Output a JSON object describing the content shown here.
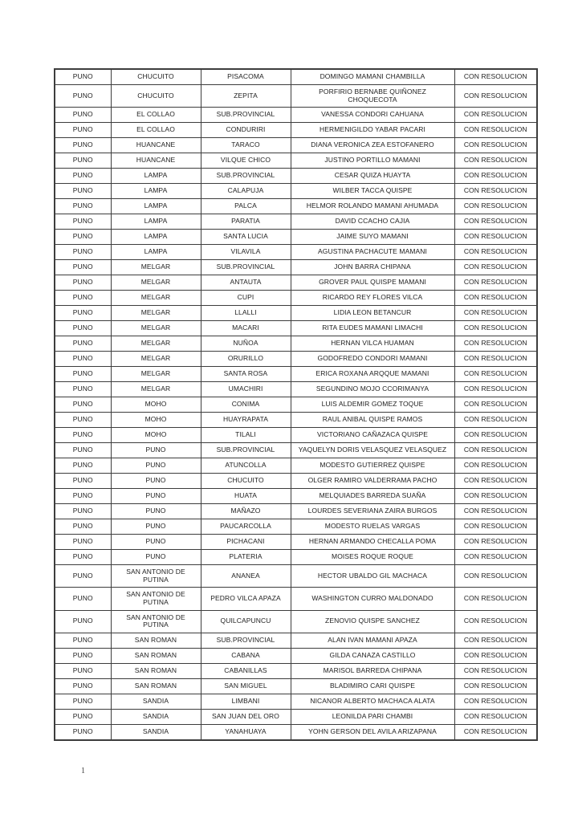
{
  "document": {
    "page_number": "1",
    "status_label": "CON RESOLUCION",
    "text_color": "#222222",
    "border_color": "#3d3d3d"
  },
  "table": {
    "rows": [
      [
        "PUNO",
        "CHUCUITO",
        "PISACOMA",
        "DOMINGO MAMANI CHAMBILLA",
        "CON RESOLUCION"
      ],
      [
        "PUNO",
        "CHUCUITO",
        "ZEPITA",
        "PORFIRIO BERNABE QUIÑONEZ CHOQUECOTA",
        "CON RESOLUCION"
      ],
      [
        "PUNO",
        "EL COLLAO",
        "SUB.PROVINCIAL",
        "VANESSA CONDORI CAHUANA",
        "CON RESOLUCION"
      ],
      [
        "PUNO",
        "EL COLLAO",
        "CONDURIRI",
        "HERMENIGILDO YABAR PACARI",
        "CON RESOLUCION"
      ],
      [
        "PUNO",
        "HUANCANE",
        "TARACO",
        "DIANA VERONICA ZEA ESTOFANERO",
        "CON RESOLUCION"
      ],
      [
        "PUNO",
        "HUANCANE",
        "VILQUE CHICO",
        "JUSTINO PORTILLO MAMANI",
        "CON RESOLUCION"
      ],
      [
        "PUNO",
        "LAMPA",
        "SUB.PROVINCIAL",
        "CESAR QUIZA HUAYTA",
        "CON RESOLUCION"
      ],
      [
        "PUNO",
        "LAMPA",
        "CALAPUJA",
        "WILBER TACCA QUISPE",
        "CON RESOLUCION"
      ],
      [
        "PUNO",
        "LAMPA",
        "PALCA",
        "HELMOR ROLANDO MAMANI AHUMADA",
        "CON RESOLUCION"
      ],
      [
        "PUNO",
        "LAMPA",
        "PARATIA",
        "DAVID CCACHO CAJIA",
        "CON RESOLUCION"
      ],
      [
        "PUNO",
        "LAMPA",
        "SANTA LUCIA",
        "JAIME SUYO MAMANI",
        "CON RESOLUCION"
      ],
      [
        "PUNO",
        "LAMPA",
        "VILAVILA",
        "AGUSTINA PACHACUTE MAMANI",
        "CON RESOLUCION"
      ],
      [
        "PUNO",
        "MELGAR",
        "SUB.PROVINCIAL",
        "JOHN BARRA CHIPANA",
        "CON RESOLUCION"
      ],
      [
        "PUNO",
        "MELGAR",
        "ANTAUTA",
        "GROVER PAUL QUISPE MAMANI",
        "CON RESOLUCION"
      ],
      [
        "PUNO",
        "MELGAR",
        "CUPI",
        "RICARDO REY FLORES VILCA",
        "CON RESOLUCION"
      ],
      [
        "PUNO",
        "MELGAR",
        "LLALLI",
        "LIDIA LEON BETANCUR",
        "CON RESOLUCION"
      ],
      [
        "PUNO",
        "MELGAR",
        "MACARI",
        "RITA EUDES MAMANI LIMACHI",
        "CON RESOLUCION"
      ],
      [
        "PUNO",
        "MELGAR",
        "NUÑOA",
        "HERNAN VILCA HUAMAN",
        "CON RESOLUCION"
      ],
      [
        "PUNO",
        "MELGAR",
        "ORURILLO",
        "GODOFREDO CONDORI MAMANI",
        "CON RESOLUCION"
      ],
      [
        "PUNO",
        "MELGAR",
        "SANTA ROSA",
        "ERICA ROXANA ARQQUE MAMANI",
        "CON RESOLUCION"
      ],
      [
        "PUNO",
        "MELGAR",
        "UMACHIRI",
        "SEGUNDINO MOJO CCORIMANYA",
        "CON RESOLUCION"
      ],
      [
        "PUNO",
        "MOHO",
        "CONIMA",
        "LUIS ALDEMIR GOMEZ TOQUE",
        "CON RESOLUCION"
      ],
      [
        "PUNO",
        "MOHO",
        "HUAYRAPATA",
        "RAUL ANIBAL QUISPE RAMOS",
        "CON RESOLUCION"
      ],
      [
        "PUNO",
        "MOHO",
        "TILALI",
        "VICTORIANO CAÑAZACA QUISPE",
        "CON RESOLUCION"
      ],
      [
        "PUNO",
        "PUNO",
        "SUB.PROVINCIAL",
        "YAQUELYN DORIS VELASQUEZ VELASQUEZ",
        "CON RESOLUCION"
      ],
      [
        "PUNO",
        "PUNO",
        "ATUNCOLLA",
        "MODESTO GUTIERREZ QUISPE",
        "CON RESOLUCION"
      ],
      [
        "PUNO",
        "PUNO",
        "CHUCUITO",
        "OLGER RAMIRO VALDERRAMA PACHO",
        "CON RESOLUCION"
      ],
      [
        "PUNO",
        "PUNO",
        "HUATA",
        "MELQUIADES BARREDA SUAÑA",
        "CON RESOLUCION"
      ],
      [
        "PUNO",
        "PUNO",
        "MAÑAZO",
        "LOURDES SEVERIANA ZAIRA BURGOS",
        "CON RESOLUCION"
      ],
      [
        "PUNO",
        "PUNO",
        "PAUCARCOLLA",
        "MODESTO RUELAS VARGAS",
        "CON RESOLUCION"
      ],
      [
        "PUNO",
        "PUNO",
        "PICHACANI",
        "HERNAN ARMANDO CHECALLA POMA",
        "CON RESOLUCION"
      ],
      [
        "PUNO",
        "PUNO",
        "PLATERIA",
        "MOISES ROQUE ROQUE",
        "CON RESOLUCION"
      ],
      [
        "PUNO",
        "SAN ANTONIO DE PUTINA",
        "ANANEA",
        "HECTOR UBALDO GIL MACHACA",
        "CON RESOLUCION"
      ],
      [
        "PUNO",
        "SAN ANTONIO DE PUTINA",
        "PEDRO VILCA APAZA",
        "WASHINGTON CURRO MALDONADO",
        "CON RESOLUCION"
      ],
      [
        "PUNO",
        "SAN ANTONIO DE PUTINA",
        "QUILCAPUNCU",
        "ZENOVIO QUISPE SANCHEZ",
        "CON RESOLUCION"
      ],
      [
        "PUNO",
        "SAN ROMAN",
        "SUB.PROVINCIAL",
        "ALAN IVAN MAMANI APAZA",
        "CON RESOLUCION"
      ],
      [
        "PUNO",
        "SAN ROMAN",
        "CABANA",
        "GILDA CANAZA CASTILLO",
        "CON RESOLUCION"
      ],
      [
        "PUNO",
        "SAN ROMAN",
        "CABANILLAS",
        "MARISOL BARREDA CHIPANA",
        "CON RESOLUCION"
      ],
      [
        "PUNO",
        "SAN ROMAN",
        "SAN MIGUEL",
        "BLADIMIRO CARI QUISPE",
        "CON RESOLUCION"
      ],
      [
        "PUNO",
        "SANDIA",
        "LIMBANI",
        "NICANOR ALBERTO MACHACA ALATA",
        "CON RESOLUCION"
      ],
      [
        "PUNO",
        "SANDIA",
        "SAN JUAN DEL ORO",
        "LEONILDA PARI CHAMBI",
        "CON RESOLUCION"
      ],
      [
        "PUNO",
        "SANDIA",
        "YANAHUAYA",
        "YOHN GERSON DEL AVILA ARIZAPANA",
        "CON RESOLUCION"
      ]
    ]
  }
}
